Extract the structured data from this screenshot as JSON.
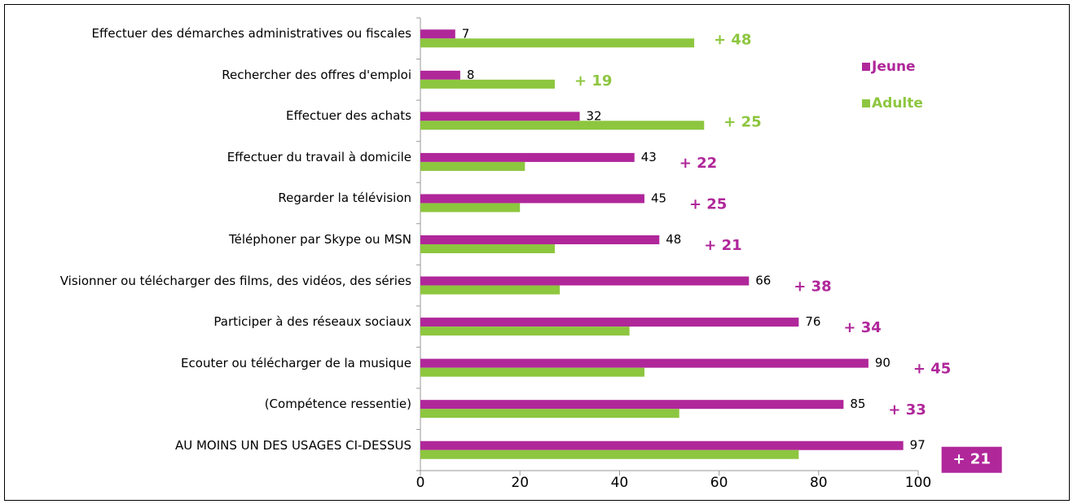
{
  "chart_data": {
    "type": "bar",
    "orientation": "horizontal",
    "categories": [
      "Effectuer des démarches administratives ou fiscales",
      "Rechercher des offres d'emploi",
      "Effectuer des achats",
      "Effectuer du travail à domicile",
      "Regarder la télévision",
      "Téléphoner par Skype ou MSN",
      "Visionner ou télécharger des films, des vidéos, des séries",
      "Participer à des réseaux sociaux",
      "Ecouter ou télécharger de la musique",
      "(Compétence ressentie)",
      "AU MOINS UN DES USAGES CI-DESSUS"
    ],
    "series": [
      {
        "name": "Jeune",
        "color": "#b0279a",
        "show_values": true,
        "values": [
          7,
          8,
          32,
          43,
          45,
          48,
          66,
          76,
          90,
          85,
          97
        ]
      },
      {
        "name": "Adulte",
        "color": "#8dc63f",
        "show_values": false,
        "values": [
          55,
          27,
          57,
          21,
          20,
          27,
          28,
          42,
          45,
          52,
          76
        ]
      }
    ],
    "annotations": [
      {
        "text": "+ 48",
        "color": "#8dc63f"
      },
      {
        "text": "+ 19",
        "color": "#8dc63f"
      },
      {
        "text": "+ 25",
        "color": "#8dc63f"
      },
      {
        "text": "+ 22",
        "color": "#b0279a"
      },
      {
        "text": "+ 25",
        "color": "#b0279a"
      },
      {
        "text": "+ 21",
        "color": "#b0279a"
      },
      {
        "text": "+ 38",
        "color": "#b0279a"
      },
      {
        "text": "+ 34",
        "color": "#b0279a"
      },
      {
        "text": "+ 45",
        "color": "#b0279a"
      },
      {
        "text": "+ 33",
        "color": "#b0279a"
      },
      {
        "text": "+ 21",
        "color": "#b0279a",
        "highlight": true
      }
    ],
    "xlim": [
      0,
      100
    ],
    "xticks": [
      0,
      20,
      40,
      60,
      80,
      100
    ]
  }
}
